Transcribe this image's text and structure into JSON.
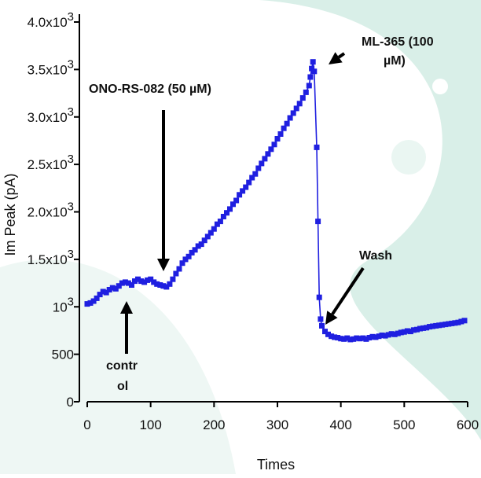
{
  "chart_data": {
    "type": "scatter",
    "title": "",
    "xlabel": "Times",
    "ylabel": "Im Peak (pA)",
    "xlim": [
      0,
      600
    ],
    "ylim": [
      0,
      4000
    ],
    "x_ticks": [
      0,
      100,
      200,
      300,
      400,
      500,
      600
    ],
    "x_tick_labels": [
      "0",
      "100",
      "200",
      "300",
      "400",
      "500",
      "600"
    ],
    "y_ticks": [
      0,
      500,
      1000,
      1500,
      2000,
      2500,
      3000,
      3500,
      4000
    ],
    "y_tick_labels": [
      {
        "main": "0",
        "sup": ""
      },
      {
        "main": "500",
        "sup": ""
      },
      {
        "main": "10",
        "sup": "3"
      },
      {
        "main": "1.5x10",
        "sup": "3"
      },
      {
        "main": "2.0x10",
        "sup": "3"
      },
      {
        "main": "2.5x10",
        "sup": "3"
      },
      {
        "main": "3.0x10",
        "sup": "3"
      },
      {
        "main": "3.5x10",
        "sup": "3"
      },
      {
        "main": "4.0x10",
        "sup": "3"
      }
    ],
    "grid": false,
    "series": [
      {
        "color": "#1f1fe0",
        "marker": "square",
        "connected": true,
        "points": [
          [
            0,
            1030
          ],
          [
            5,
            1040
          ],
          [
            10,
            1060
          ],
          [
            15,
            1090
          ],
          [
            20,
            1130
          ],
          [
            25,
            1160
          ],
          [
            30,
            1150
          ],
          [
            35,
            1180
          ],
          [
            40,
            1200
          ],
          [
            45,
            1190
          ],
          [
            50,
            1220
          ],
          [
            55,
            1250
          ],
          [
            60,
            1260
          ],
          [
            65,
            1250
          ],
          [
            70,
            1230
          ],
          [
            75,
            1270
          ],
          [
            80,
            1290
          ],
          [
            85,
            1270
          ],
          [
            90,
            1260
          ],
          [
            95,
            1280
          ],
          [
            100,
            1290
          ],
          [
            105,
            1260
          ],
          [
            110,
            1240
          ],
          [
            115,
            1230
          ],
          [
            120,
            1220
          ],
          [
            125,
            1210
          ],
          [
            130,
            1240
          ],
          [
            135,
            1290
          ],
          [
            140,
            1350
          ],
          [
            145,
            1400
          ],
          [
            150,
            1460
          ],
          [
            155,
            1500
          ],
          [
            160,
            1530
          ],
          [
            165,
            1570
          ],
          [
            170,
            1600
          ],
          [
            175,
            1640
          ],
          [
            180,
            1660
          ],
          [
            185,
            1700
          ],
          [
            190,
            1740
          ],
          [
            195,
            1780
          ],
          [
            200,
            1820
          ],
          [
            205,
            1870
          ],
          [
            210,
            1900
          ],
          [
            215,
            1950
          ],
          [
            220,
            1990
          ],
          [
            225,
            2030
          ],
          [
            230,
            2080
          ],
          [
            235,
            2120
          ],
          [
            240,
            2180
          ],
          [
            245,
            2220
          ],
          [
            250,
            2260
          ],
          [
            255,
            2310
          ],
          [
            260,
            2360
          ],
          [
            265,
            2400
          ],
          [
            270,
            2460
          ],
          [
            275,
            2510
          ],
          [
            280,
            2560
          ],
          [
            285,
            2610
          ],
          [
            290,
            2660
          ],
          [
            295,
            2710
          ],
          [
            300,
            2770
          ],
          [
            305,
            2820
          ],
          [
            310,
            2880
          ],
          [
            315,
            2930
          ],
          [
            320,
            2990
          ],
          [
            325,
            3040
          ],
          [
            330,
            3090
          ],
          [
            335,
            3140
          ],
          [
            340,
            3200
          ],
          [
            345,
            3260
          ],
          [
            350,
            3330
          ],
          [
            352,
            3420
          ],
          [
            354,
            3510
          ],
          [
            356,
            3580
          ],
          [
            358,
            3480
          ],
          [
            362,
            2680
          ],
          [
            364,
            1900
          ],
          [
            366,
            1100
          ],
          [
            368,
            870
          ],
          [
            370,
            800
          ],
          [
            375,
            740
          ],
          [
            380,
            710
          ],
          [
            385,
            690
          ],
          [
            390,
            680
          ],
          [
            395,
            675
          ],
          [
            400,
            665
          ],
          [
            405,
            660
          ],
          [
            410,
            670
          ],
          [
            415,
            655
          ],
          [
            420,
            660
          ],
          [
            425,
            670
          ],
          [
            430,
            665
          ],
          [
            435,
            670
          ],
          [
            440,
            660
          ],
          [
            445,
            675
          ],
          [
            450,
            685
          ],
          [
            455,
            680
          ],
          [
            460,
            690
          ],
          [
            465,
            700
          ],
          [
            470,
            695
          ],
          [
            475,
            705
          ],
          [
            480,
            715
          ],
          [
            485,
            710
          ],
          [
            490,
            720
          ],
          [
            495,
            730
          ],
          [
            500,
            735
          ],
          [
            505,
            745
          ],
          [
            510,
            740
          ],
          [
            515,
            755
          ],
          [
            520,
            760
          ],
          [
            525,
            770
          ],
          [
            530,
            775
          ],
          [
            535,
            780
          ],
          [
            540,
            790
          ],
          [
            545,
            795
          ],
          [
            550,
            800
          ],
          [
            555,
            805
          ],
          [
            560,
            810
          ],
          [
            565,
            815
          ],
          [
            570,
            820
          ],
          [
            575,
            825
          ],
          [
            580,
            830
          ],
          [
            585,
            835
          ],
          [
            590,
            845
          ],
          [
            595,
            855
          ]
        ]
      }
    ],
    "annotations": {
      "ono": "ONO-RS-082 (50 µM)",
      "ml365_line1": "ML-365 (100",
      "ml365_line2": "µM)",
      "wash": "Wash",
      "control_line1": "contr",
      "control_line2": "ol"
    },
    "background": {
      "base_color": "#ffffff",
      "swirl_color": "#d9efe8"
    }
  }
}
